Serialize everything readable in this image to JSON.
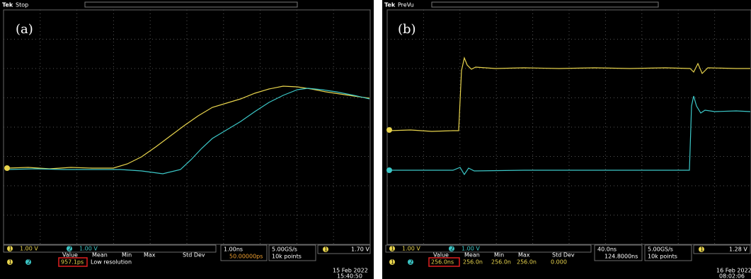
{
  "panels": [
    {
      "status": {
        "brand": "Tek",
        "state": "Stop"
      },
      "label": "(a)",
      "channels": [
        "1",
        "2"
      ],
      "ch1_scale": "1.00 V",
      "ch2_scale": "1.00 V",
      "measurement": {
        "headers": [
          "Value",
          "Mean",
          "Min",
          "Max",
          "Std Dev"
        ],
        "values": [
          "957.1ps"
        ],
        "note": "Low resolution"
      },
      "horizontal": {
        "scale": "1.00ns",
        "delay": "50.00000ps"
      },
      "acquisition": {
        "rate": "5.00GS/s",
        "length": "10k points"
      },
      "trigger": {
        "level": "1.70 V"
      },
      "date": "15 Feb 2022",
      "time": "15:40:50"
    },
    {
      "status": {
        "brand": "Tek",
        "state": "PreVu"
      },
      "label": "(b)",
      "channels": [
        "1",
        "2"
      ],
      "ch1_scale": "1.00 V",
      "ch2_scale": "1.00 V",
      "measurement": {
        "headers": [
          "Value",
          "Mean",
          "Min",
          "Max",
          "Std Dev"
        ],
        "values": [
          "256.0ns",
          "256.0n",
          "256.0n",
          "256.0n",
          "0.000"
        ]
      },
      "horizontal": {
        "scale": "40.0ns",
        "delay": "124.8000ns"
      },
      "acquisition": {
        "rate": "5.00GS/s",
        "length": "10k points"
      },
      "trigger": {
        "level": "1.28 V"
      },
      "date": "16 Feb 2022",
      "time": "08:02:06"
    }
  ]
}
